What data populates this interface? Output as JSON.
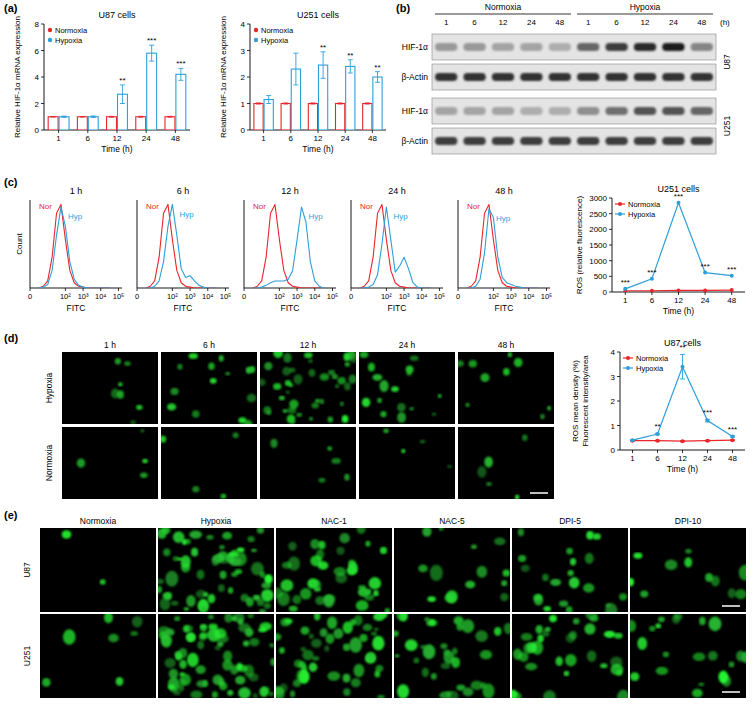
{
  "panels": [
    "(a)",
    "(b)",
    "(c)",
    "(d)",
    "(e)"
  ],
  "chart_data": [
    {
      "type": "bar",
      "title": "U87 cells",
      "x_label": "Time (h)",
      "y_label": "Relative HIF-1α mRNA expression",
      "categories": [
        "1",
        "6",
        "12",
        "24",
        "48"
      ],
      "ylim": [
        0,
        8
      ],
      "yticks": [
        0,
        2,
        4,
        6,
        8
      ],
      "legend": "top-left",
      "series": [
        {
          "name": "Normoxia",
          "color": "#e8262b",
          "values": [
            1,
            1,
            1,
            1,
            1
          ],
          "errors": [
            0.02,
            0.02,
            0.03,
            0.03,
            0.03
          ]
        },
        {
          "name": "Hypoxia",
          "color": "#2e9fd8",
          "values": [
            1.0,
            1.0,
            2.7,
            5.8,
            4.2
          ],
          "errors": [
            0.05,
            0.06,
            0.7,
            0.6,
            0.45
          ],
          "significance": [
            null,
            null,
            "**",
            "***",
            "***"
          ]
        }
      ]
    },
    {
      "type": "bar",
      "title": "U251 cells",
      "x_label": "Time (h)",
      "y_label": "Relative HIF-1α mRNA expression",
      "categories": [
        "1",
        "6",
        "12",
        "24",
        "48"
      ],
      "ylim": [
        0,
        4
      ],
      "yticks": [
        0,
        1,
        2,
        3,
        4
      ],
      "legend": "top-left",
      "series": [
        {
          "name": "Normoxia",
          "color": "#e8262b",
          "values": [
            1,
            1,
            1,
            1,
            1
          ],
          "errors": [
            0.02,
            0.02,
            0.02,
            0.02,
            0.02
          ]
        },
        {
          "name": "Hypoxia",
          "color": "#2e9fd8",
          "values": [
            1.15,
            2.3,
            2.45,
            2.4,
            2.0
          ],
          "errors": [
            0.15,
            0.6,
            0.5,
            0.25,
            0.2
          ],
          "significance": [
            null,
            null,
            "**",
            "**",
            "**"
          ]
        }
      ]
    },
    {
      "type": "line",
      "title": "1 h",
      "x_label": "FITC",
      "y_label": "Count",
      "tick_labels": "x",
      "x": [
        0.5,
        0.75,
        1,
        1.25,
        1.5,
        1.75,
        2,
        2.25,
        2.5,
        2.75,
        3,
        3.25,
        3.5,
        3.75,
        4,
        4.25,
        4.5
      ],
      "xlim": [
        0,
        5.2
      ],
      "xticks": [
        {
          "value": 0,
          "label": "0"
        },
        {
          "value": 2,
          "label": "10²"
        },
        {
          "value": 3,
          "label": "10³"
        },
        {
          "value": 4,
          "label": "10⁴"
        },
        {
          "value": 5,
          "label": "10⁵"
        }
      ],
      "ylim": [
        0,
        100
      ],
      "series": [
        {
          "name": "Nor",
          "color": "#e8262b",
          "values": [
            0,
            2,
            8,
            35,
            85,
            95,
            55,
            20,
            6,
            2,
            1,
            0,
            0,
            0,
            0,
            0,
            0
          ]
        },
        {
          "name": "Hyp",
          "color": "#2e9fd8",
          "values": [
            0,
            1,
            4,
            20,
            60,
            92,
            70,
            30,
            10,
            3,
            1,
            0,
            0,
            0,
            0,
            0,
            0
          ]
        }
      ]
    },
    {
      "type": "line",
      "title": "6 h",
      "x_label": "FITC",
      "tick_labels": "x",
      "x": [
        0.5,
        0.75,
        1,
        1.25,
        1.5,
        1.75,
        2,
        2.25,
        2.5,
        2.75,
        3,
        3.25,
        3.5,
        3.75,
        4,
        4.25,
        4.5
      ],
      "xlim": [
        0,
        5.2
      ],
      "xticks": [
        {
          "value": 0,
          "label": "0"
        },
        {
          "value": 2,
          "label": "10²"
        },
        {
          "value": 3,
          "label": "10³"
        },
        {
          "value": 4,
          "label": "10⁴"
        },
        {
          "value": 5,
          "label": "10⁵"
        }
      ],
      "ylim": [
        0,
        100
      ],
      "series": [
        {
          "name": "Nor",
          "color": "#e8262b",
          "values": [
            0,
            2,
            8,
            35,
            85,
            95,
            55,
            20,
            6,
            2,
            1,
            0,
            0,
            0,
            0,
            0,
            0
          ]
        },
        {
          "name": "Hyp",
          "color": "#2e9fd8",
          "values": [
            0,
            0,
            2,
            8,
            30,
            70,
            95,
            60,
            22,
            12,
            14,
            8,
            3,
            1,
            0,
            0,
            0
          ]
        }
      ]
    },
    {
      "type": "line",
      "title": "12 h",
      "x_label": "FITC",
      "tick_labels": "x",
      "x": [
        0.5,
        0.75,
        1,
        1.25,
        1.5,
        1.75,
        2,
        2.25,
        2.5,
        2.75,
        3,
        3.25,
        3.5,
        3.75,
        4,
        4.25,
        4.5
      ],
      "xlim": [
        0,
        5.2
      ],
      "xticks": [
        {
          "value": 0,
          "label": "0"
        },
        {
          "value": 2,
          "label": "10²"
        },
        {
          "value": 3,
          "label": "10³"
        },
        {
          "value": 4,
          "label": "10⁴"
        },
        {
          "value": 5,
          "label": "10⁵"
        }
      ],
      "ylim": [
        0,
        100
      ],
      "series": [
        {
          "name": "Nor",
          "color": "#e8262b",
          "values": [
            0,
            2,
            8,
            35,
            85,
            95,
            55,
            20,
            6,
            2,
            1,
            0,
            0,
            0,
            0,
            0,
            0
          ]
        },
        {
          "name": "Hyp",
          "color": "#2e9fd8",
          "values": [
            0,
            0,
            1,
            3,
            6,
            8,
            8,
            8,
            10,
            20,
            55,
            92,
            75,
            30,
            8,
            2,
            0
          ]
        }
      ]
    },
    {
      "type": "line",
      "title": "24 h",
      "x_label": "FITC",
      "tick_labels": "x",
      "x": [
        0.5,
        0.75,
        1,
        1.25,
        1.5,
        1.75,
        2,
        2.25,
        2.5,
        2.75,
        3,
        3.25,
        3.5,
        3.75,
        4,
        4.25,
        4.5
      ],
      "xlim": [
        0,
        5.2
      ],
      "xticks": [
        {
          "value": 0,
          "label": "0"
        },
        {
          "value": 2,
          "label": "10²"
        },
        {
          "value": 3,
          "label": "10³"
        },
        {
          "value": 4,
          "label": "10⁴"
        },
        {
          "value": 5,
          "label": "10⁵"
        }
      ],
      "ylim": [
        0,
        100
      ],
      "series": [
        {
          "name": "Nor",
          "color": "#e8262b",
          "values": [
            0,
            2,
            8,
            35,
            85,
            95,
            55,
            20,
            6,
            2,
            1,
            0,
            0,
            0,
            0,
            0,
            0
          ]
        },
        {
          "name": "Hyp",
          "color": "#2e9fd8",
          "values": [
            0,
            0,
            1,
            4,
            15,
            50,
            92,
            55,
            18,
            25,
            35,
            22,
            6,
            1,
            0,
            0,
            0
          ]
        }
      ]
    },
    {
      "type": "line",
      "title": "48 h",
      "x_label": "FITC",
      "tick_labels": "x",
      "x": [
        0.5,
        0.75,
        1,
        1.25,
        1.5,
        1.75,
        2,
        2.25,
        2.5,
        2.75,
        3,
        3.25,
        3.5,
        3.75,
        4,
        4.25,
        4.5
      ],
      "xlim": [
        0,
        5.2
      ],
      "xticks": [
        {
          "value": 0,
          "label": "0"
        },
        {
          "value": 2,
          "label": "10²"
        },
        {
          "value": 3,
          "label": "10³"
        },
        {
          "value": 4,
          "label": "10⁴"
        },
        {
          "value": 5,
          "label": "10⁵"
        }
      ],
      "ylim": [
        0,
        100
      ],
      "series": [
        {
          "name": "Nor",
          "color": "#e8262b",
          "values": [
            0,
            2,
            8,
            35,
            85,
            95,
            55,
            20,
            6,
            2,
            1,
            0,
            0,
            0,
            0,
            0,
            0
          ]
        },
        {
          "name": "Hyp",
          "color": "#2e9fd8",
          "values": [
            0,
            0,
            2,
            10,
            40,
            90,
            80,
            35,
            12,
            6,
            4,
            2,
            1,
            0,
            0,
            0,
            0
          ]
        }
      ]
    },
    {
      "type": "line",
      "title": "U251 cells",
      "x_label": "Time (h)",
      "y_label": "ROS (relative fluorescence)",
      "categories": [
        "1",
        "6",
        "12",
        "24",
        "48"
      ],
      "ylim": [
        0,
        3000
      ],
      "yticks": [
        0,
        500,
        1000,
        1500,
        2000,
        2500,
        3000
      ],
      "legend": "top-left",
      "series": [
        {
          "name": "Normoxia",
          "color": "#e8262b",
          "marker": "circle",
          "values": [
            40,
            40,
            50,
            50,
            60
          ]
        },
        {
          "name": "Hypoxia",
          "color": "#2e9fd8",
          "marker": "circle",
          "values": [
            100,
            420,
            2850,
            620,
            520
          ],
          "significance": [
            "***",
            "***",
            "***",
            "***",
            "***"
          ]
        }
      ]
    },
    {
      "type": "line",
      "title": "U87 cells",
      "x_label": "Time (h)",
      "y_label": [
        "ROS mean density (%)",
        "Fluorescent intensity/area"
      ],
      "categories": [
        "1",
        "6",
        "12",
        "24",
        "48"
      ],
      "ylim": [
        0,
        4
      ],
      "yticks": [
        0,
        1,
        2,
        3,
        4
      ],
      "legend": "top-left",
      "series": [
        {
          "name": "Normoxia",
          "color": "#e8262b",
          "marker": "circle",
          "values": [
            0.38,
            0.38,
            0.36,
            0.38,
            0.4
          ],
          "errors": [
            0.02,
            0.02,
            0.02,
            0.02,
            0.02
          ]
        },
        {
          "name": "Hypoxia",
          "color": "#2e9fd8",
          "marker": "circle",
          "values": [
            0.4,
            0.65,
            3.4,
            1.2,
            0.55
          ],
          "errors": [
            0.02,
            0.03,
            0.5,
            0.05,
            0.03
          ],
          "significance": [
            null,
            "**",
            "**",
            "***",
            "***"
          ]
        }
      ]
    }
  ],
  "blot": {
    "conditions": [
      "Normoxia",
      "Hypoxia"
    ],
    "lanes": [
      "1",
      "6",
      "12",
      "24",
      "48",
      "1",
      "6",
      "12",
      "24",
      "48"
    ],
    "unit": "(h)",
    "groups": [
      {
        "cell_line": "U87",
        "rows": [
          {
            "label": "HIF-1α",
            "intensity": [
              0.35,
              0.35,
              0.3,
              0.3,
              0.25,
              0.6,
              0.8,
              0.9,
              0.95,
              0.45
            ]
          },
          {
            "label": "β-Actin",
            "intensity": [
              0.85,
              0.85,
              0.85,
              0.85,
              0.85,
              0.85,
              0.85,
              0.85,
              0.85,
              0.85
            ]
          }
        ]
      },
      {
        "cell_line": "U251",
        "rows": [
          {
            "label": "HIF-1α",
            "intensity": [
              0.3,
              0.3,
              0.3,
              0.25,
              0.25,
              0.4,
              0.55,
              0.7,
              0.7,
              0.6
            ]
          },
          {
            "label": "β-Actin",
            "intensity": [
              0.8,
              0.8,
              0.8,
              0.8,
              0.8,
              0.8,
              0.8,
              0.8,
              0.8,
              0.8
            ]
          }
        ]
      }
    ]
  },
  "images_d": {
    "rows": [
      "Hypoxia",
      "Normoxia"
    ],
    "columns": [
      "1 h",
      "6 h",
      "12 h",
      "24 h",
      "48 h"
    ],
    "density": [
      [
        0.15,
        0.3,
        0.9,
        0.35,
        0.2
      ],
      [
        0.08,
        0.08,
        0.1,
        0.08,
        0.12
      ]
    ]
  },
  "images_e": {
    "rows": [
      "U87",
      "U251"
    ],
    "columns": [
      "Normoxia",
      "Hypoxia",
      "NAC-1",
      "NAC-5",
      "DPI-5",
      "DPI-10"
    ],
    "density": [
      [
        0.03,
        0.85,
        0.55,
        0.2,
        0.3,
        0.15
      ],
      [
        0.1,
        1.0,
        0.7,
        0.5,
        0.45,
        0.3
      ]
    ]
  }
}
